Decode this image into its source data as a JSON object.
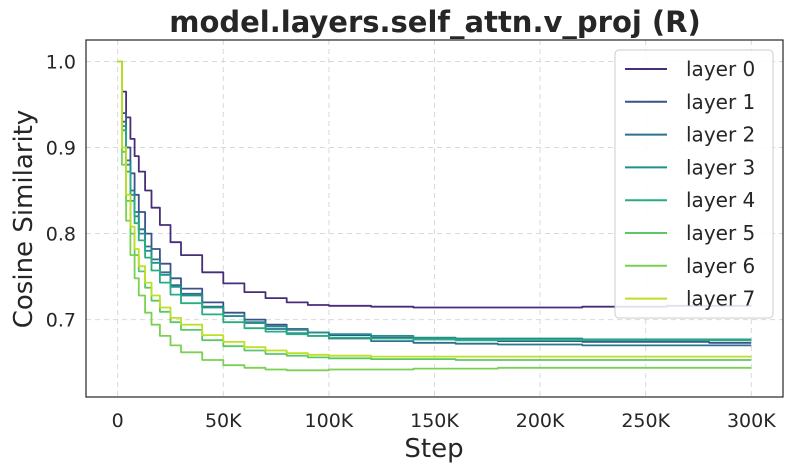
{
  "chart_data": {
    "type": "line",
    "title": "model.layers.self_attn.v_proj (R)",
    "xlabel": "Step",
    "ylabel": "Cosine Similarity",
    "xlim": [
      -15000,
      315000
    ],
    "ylim": [
      0.61,
      1.025
    ],
    "xticks": [
      0,
      50000,
      100000,
      150000,
      200000,
      250000,
      300000
    ],
    "xtick_labels": [
      "0",
      "50K",
      "100K",
      "150K",
      "200K",
      "250K",
      "300K"
    ],
    "yticks": [
      0.7,
      0.8,
      0.9,
      1.0
    ],
    "ytick_labels": [
      "0.7",
      "0.8",
      "0.9",
      "1.0"
    ],
    "grid": true,
    "legend_position": "top-right",
    "x": [
      0,
      2000,
      4000,
      6000,
      8000,
      10000,
      13000,
      16000,
      20000,
      25000,
      30000,
      40000,
      50000,
      60000,
      70000,
      80000,
      90000,
      100000,
      120000,
      140000,
      160000,
      180000,
      200000,
      220000,
      240000,
      260000,
      280000,
      300000
    ],
    "series": [
      {
        "name": "layer 0",
        "color": "#472c7a",
        "values": [
          1.0,
          0.965,
          0.935,
          0.91,
          0.89,
          0.872,
          0.85,
          0.83,
          0.81,
          0.79,
          0.775,
          0.755,
          0.742,
          0.732,
          0.725,
          0.72,
          0.717,
          0.716,
          0.715,
          0.714,
          0.714,
          0.714,
          0.714,
          0.715,
          0.715,
          0.716,
          0.716,
          0.716
        ]
      },
      {
        "name": "layer 1",
        "color": "#3b518b",
        "values": [
          1.0,
          0.94,
          0.9,
          0.87,
          0.845,
          0.825,
          0.8,
          0.782,
          0.765,
          0.748,
          0.736,
          0.72,
          0.708,
          0.7,
          0.694,
          0.689,
          0.685,
          0.682,
          0.679,
          0.677,
          0.676,
          0.675,
          0.675,
          0.674,
          0.674,
          0.674,
          0.673,
          0.673
        ]
      },
      {
        "name": "layer 2",
        "color": "#2c718e",
        "values": [
          1.0,
          0.93,
          0.885,
          0.85,
          0.825,
          0.805,
          0.785,
          0.77,
          0.755,
          0.74,
          0.73,
          0.715,
          0.704,
          0.696,
          0.689,
          0.684,
          0.681,
          0.678,
          0.675,
          0.673,
          0.672,
          0.671,
          0.671,
          0.67,
          0.67,
          0.67,
          0.67,
          0.67
        ]
      },
      {
        "name": "layer 3",
        "color": "#21908d",
        "values": [
          1.0,
          0.925,
          0.88,
          0.845,
          0.82,
          0.8,
          0.78,
          0.766,
          0.752,
          0.738,
          0.728,
          0.714,
          0.704,
          0.697,
          0.692,
          0.688,
          0.685,
          0.683,
          0.681,
          0.679,
          0.678,
          0.678,
          0.678,
          0.677,
          0.677,
          0.677,
          0.677,
          0.677
        ]
      },
      {
        "name": "layer 4",
        "color": "#27ad81",
        "values": [
          1.0,
          0.92,
          0.872,
          0.838,
          0.812,
          0.792,
          0.772,
          0.757,
          0.743,
          0.729,
          0.719,
          0.706,
          0.697,
          0.69,
          0.686,
          0.683,
          0.681,
          0.679,
          0.678,
          0.677,
          0.676,
          0.676,
          0.676,
          0.676,
          0.676,
          0.676,
          0.676,
          0.676
        ]
      },
      {
        "name": "layer 5",
        "color": "#5cc863",
        "values": [
          1.0,
          0.895,
          0.838,
          0.8,
          0.775,
          0.756,
          0.737,
          0.722,
          0.709,
          0.697,
          0.688,
          0.676,
          0.669,
          0.664,
          0.66,
          0.658,
          0.656,
          0.655,
          0.654,
          0.654,
          0.653,
          0.653,
          0.653,
          0.653,
          0.653,
          0.653,
          0.653,
          0.653
        ]
      },
      {
        "name": "layer 6",
        "color": "#7ad151",
        "values": [
          1.0,
          0.88,
          0.815,
          0.775,
          0.748,
          0.728,
          0.708,
          0.694,
          0.681,
          0.67,
          0.662,
          0.653,
          0.647,
          0.644,
          0.642,
          0.641,
          0.641,
          0.642,
          0.642,
          0.643,
          0.643,
          0.644,
          0.644,
          0.644,
          0.644,
          0.644,
          0.644,
          0.644
        ]
      },
      {
        "name": "layer 7",
        "color": "#bddf26",
        "values": [
          1.0,
          0.9,
          0.845,
          0.808,
          0.782,
          0.762,
          0.743,
          0.728,
          0.714,
          0.702,
          0.694,
          0.682,
          0.674,
          0.668,
          0.664,
          0.661,
          0.659,
          0.658,
          0.657,
          0.657,
          0.657,
          0.657,
          0.657,
          0.657,
          0.657,
          0.657,
          0.657,
          0.657
        ]
      }
    ]
  }
}
